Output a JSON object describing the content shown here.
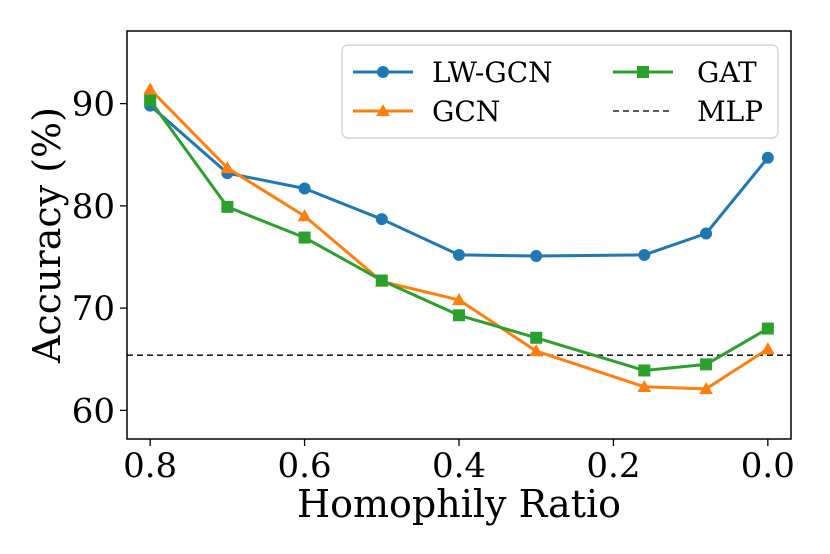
{
  "chart_data": {
    "type": "line",
    "title": "",
    "xlabel": "Homophily Ratio",
    "ylabel": "Accuracy (%)",
    "x": [
      0.8,
      0.7,
      0.6,
      0.5,
      0.4,
      0.3,
      0.16,
      0.08,
      0.0
    ],
    "xlim": [
      0.83,
      -0.03
    ],
    "ylim": [
      57.2,
      97.1
    ],
    "xticks": [
      0.8,
      0.6,
      0.4,
      0.2,
      0.0
    ],
    "xtick_labels": [
      "0.8",
      "0.6",
      "0.4",
      "0.2",
      "0.0"
    ],
    "yticks": [
      60,
      70,
      80,
      90
    ],
    "ytick_labels": [
      "60",
      "70",
      "80",
      "90"
    ],
    "grid": false,
    "legend_position": "top-right",
    "series": [
      {
        "name": "LW-GCN",
        "color": "#1f77b4",
        "marker": "circle",
        "values": [
          89.8,
          83.2,
          81.7,
          78.7,
          75.2,
          75.1,
          75.2,
          77.3,
          84.7
        ]
      },
      {
        "name": "GCN",
        "color": "#ff7f0e",
        "marker": "triangle",
        "values": [
          91.4,
          83.7,
          79.0,
          72.6,
          70.8,
          65.8,
          62.3,
          62.1,
          66.0
        ]
      },
      {
        "name": "GAT",
        "color": "#2ca02c",
        "marker": "square",
        "values": [
          90.3,
          79.9,
          76.9,
          72.7,
          69.3,
          67.1,
          63.9,
          64.5,
          68.0
        ]
      }
    ],
    "reference_lines": [
      {
        "name": "MLP",
        "color": "#222222",
        "style": "dashed",
        "y": 65.4
      }
    ]
  }
}
